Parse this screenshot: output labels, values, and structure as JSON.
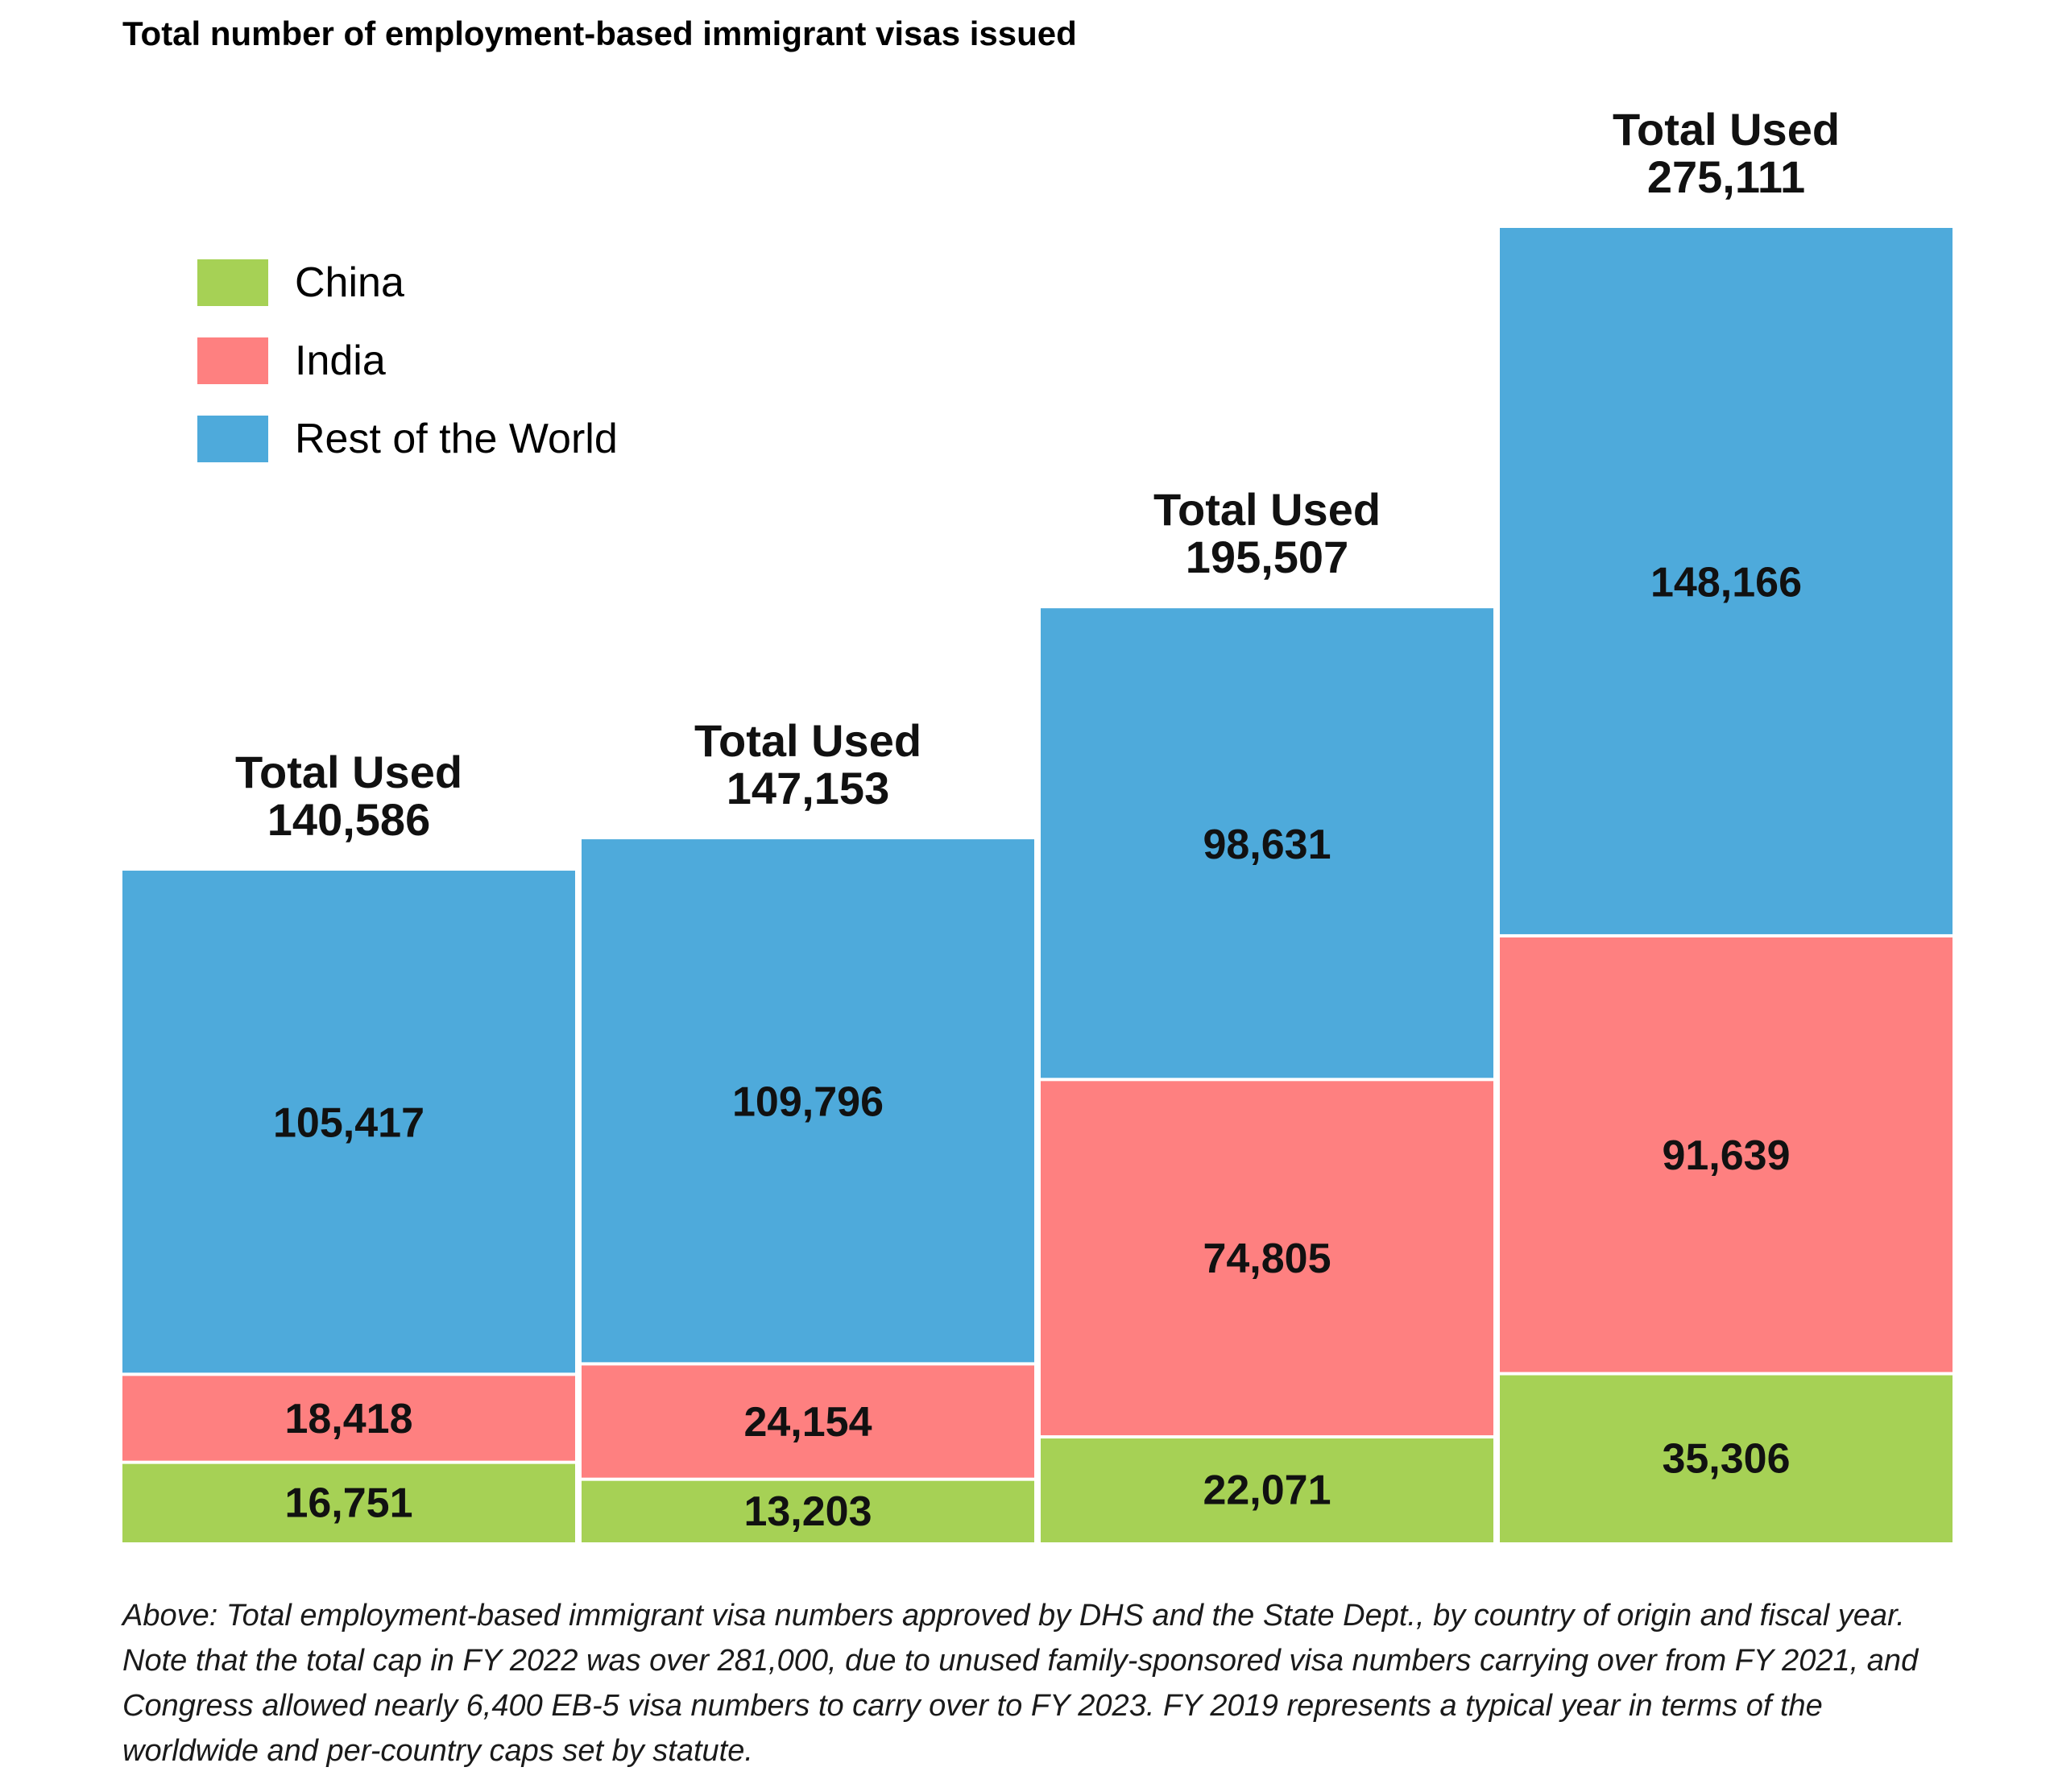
{
  "title": "Total number of employment-based immigrant visas issued",
  "legend": [
    {
      "name": "China",
      "color": "#a6d155"
    },
    {
      "name": "India",
      "color": "#fe8080"
    },
    {
      "name": "Rest of the World",
      "color": "#4eaadb"
    }
  ],
  "chart_data": {
    "type": "bar",
    "stacked": true,
    "categories": [
      "",
      "",
      "",
      ""
    ],
    "total_label": "Total Used",
    "totals": [
      "140,586",
      "147,153",
      "195,507",
      "275,111"
    ],
    "total_values": [
      140586,
      147153,
      195507,
      275111
    ],
    "series": [
      {
        "name": "China",
        "color": "#a6d155",
        "values": [
          16751,
          13203,
          22071,
          35306
        ],
        "labels": [
          "16,751",
          "13,203",
          "22,071",
          "35,306"
        ]
      },
      {
        "name": "India",
        "color": "#fe8080",
        "values": [
          18418,
          24154,
          74805,
          91639
        ],
        "labels": [
          "18,418",
          "24,154",
          "74,805",
          "91,639"
        ]
      },
      {
        "name": "Rest of the World",
        "color": "#4eaadb",
        "values": [
          105417,
          109796,
          98631,
          148166
        ],
        "labels": [
          "105,417",
          "109,796",
          "98,631",
          "148,166"
        ]
      }
    ],
    "ylim": [
      0,
      275111
    ],
    "grid": false,
    "legend_position": "top-left"
  },
  "caption": " Above: Total employment-based immigrant visa numbers approved by DHS and the State Dept., by country of origin and fiscal year. Note that the total cap in FY 2022 was over 281,000, due to unused family-sponsored visa numbers carrying over from FY 2021, and Congress allowed nearly 6,400 EB-5 visa numbers to carry over to FY 2023. FY 2019 represents a typical year in terms of the worldwide and per-country caps set by statute."
}
